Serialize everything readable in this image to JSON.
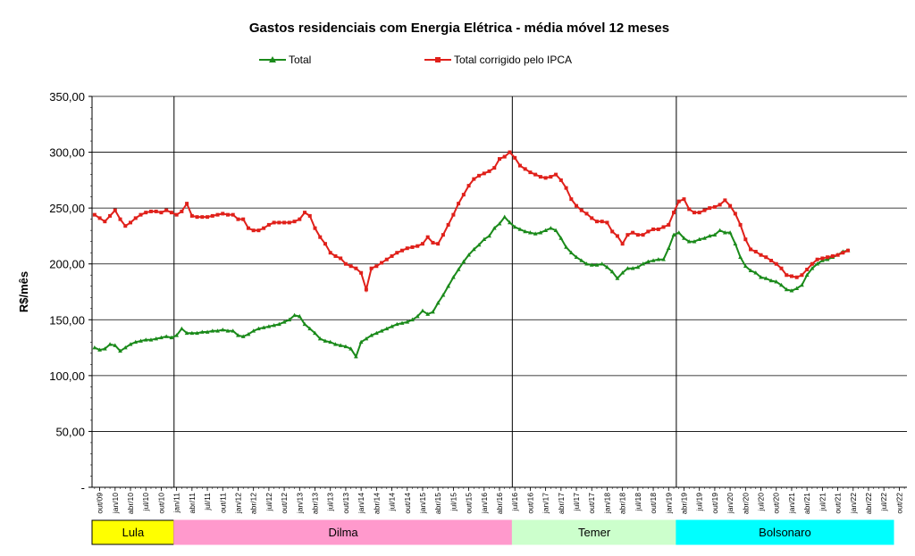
{
  "chart_data": {
    "type": "line",
    "title": "Gastos residenciais com Energia Elétrica - média móvel 12 meses",
    "ylabel": "R$/mês",
    "xlabel": "",
    "ylim": [
      0,
      350
    ],
    "y_tick_labels": [
      "-",
      "50,00",
      "100,00",
      "150,00",
      "200,00",
      "250,00",
      "300,00",
      "350,00"
    ],
    "grid": "horizontal",
    "legend_position": "top",
    "x_tick_labels": [
      "out/09",
      "jan/10",
      "abr/10",
      "jul/10",
      "out/10",
      "jan/11",
      "abr/11",
      "jul/11",
      "out/11",
      "jan/12",
      "abr/12",
      "jul/12",
      "out/12",
      "jan/13",
      "abr/13",
      "jul/13",
      "out/13",
      "jan/14",
      "abr/14",
      "jul/14",
      "out/14",
      "jan/15",
      "abr/15",
      "jul/15",
      "out/15",
      "jan/16",
      "abr/16",
      "jul/16",
      "out/16",
      "jan/17",
      "abr/17",
      "jul/17",
      "out/17",
      "jan/18",
      "abr/18",
      "jul/18",
      "out/18",
      "jan/19",
      "abr/19",
      "jul/19",
      "out/19",
      "jan/20",
      "abr/20",
      "jul/20",
      "out/20",
      "jan/21",
      "abr/21",
      "jul/21",
      "out/21",
      "jan/22",
      "abr/22",
      "jul/22",
      "out/22"
    ],
    "x_start": "set/09",
    "series": [
      {
        "name": "Total",
        "color": "#1a8a1a",
        "marker": "triangle",
        "values": [
          125,
          123,
          124,
          128,
          127,
          122,
          125,
          128,
          130,
          131,
          132,
          132,
          133,
          134,
          135,
          134,
          136,
          142,
          138,
          138,
          138,
          139,
          139,
          140,
          140,
          141,
          140,
          140,
          136,
          135,
          137,
          140,
          142,
          143,
          144,
          145,
          146,
          148,
          150,
          154,
          153,
          146,
          142,
          138,
          133,
          131,
          130,
          128,
          127,
          126,
          124,
          117,
          130,
          133,
          136,
          138,
          140,
          142,
          144,
          146,
          147,
          148,
          150,
          153,
          158,
          155,
          157,
          165,
          172,
          180,
          188,
          195,
          202,
          208,
          213,
          217,
          222,
          225,
          232,
          236,
          242,
          237,
          233,
          231,
          229,
          228,
          227,
          228,
          230,
          232,
          230,
          223,
          215,
          210,
          206,
          203,
          200,
          199,
          199,
          200,
          197,
          193,
          187,
          192,
          196,
          196,
          197,
          200,
          202,
          203,
          204,
          204,
          214,
          226,
          228,
          223,
          220,
          220,
          222,
          223,
          225,
          226,
          230,
          228,
          228,
          218,
          206,
          198,
          194,
          192,
          188,
          187,
          185,
          184,
          181,
          177,
          176,
          178,
          181,
          190,
          196,
          200,
          203,
          204,
          206,
          208,
          211,
          212
        ]
      },
      {
        "name": "Total corrigido pelo IPCA",
        "color": "#e0201a",
        "marker": "square",
        "values": [
          244,
          241,
          238,
          243,
          248,
          240,
          234,
          237,
          241,
          244,
          246,
          247,
          247,
          246,
          248,
          246,
          244,
          247,
          254,
          243,
          242,
          242,
          242,
          243,
          244,
          245,
          244,
          244,
          240,
          240,
          232,
          230,
          230,
          232,
          235,
          237,
          237,
          237,
          237,
          238,
          240,
          246,
          243,
          232,
          224,
          218,
          210,
          207,
          205,
          200,
          198,
          196,
          192,
          177,
          196,
          198,
          201,
          204,
          207,
          210,
          212,
          214,
          215,
          216,
          218,
          224,
          219,
          218,
          226,
          235,
          244,
          254,
          262,
          270,
          276,
          279,
          281,
          283,
          286,
          294,
          296,
          300,
          295,
          288,
          285,
          282,
          280,
          278,
          277,
          278,
          280,
          275,
          268,
          258,
          252,
          248,
          245,
          241,
          238,
          238,
          237,
          229,
          225,
          218,
          226,
          228,
          226,
          226,
          229,
          231,
          231,
          233,
          235,
          246,
          256,
          258,
          249,
          246,
          246,
          248,
          250,
          251,
          253,
          257,
          252,
          245,
          235,
          222,
          213,
          211,
          208,
          206,
          203,
          200,
          196,
          190,
          189,
          188,
          190,
          195,
          200,
          204,
          205,
          206,
          207,
          208,
          210,
          212
        ]
      }
    ],
    "presidents": [
      {
        "name": "Lula",
        "color": "#ffff00",
        "border": "#000000"
      },
      {
        "name": "Dilma",
        "color": "#ff99cc",
        "border": "#ff99cc"
      },
      {
        "name": "Temer",
        "color": "#ccffcc",
        "border": "#ccffcc"
      },
      {
        "name": "Bolsonaro",
        "color": "#00ffff",
        "border": "#00ffff"
      }
    ]
  }
}
